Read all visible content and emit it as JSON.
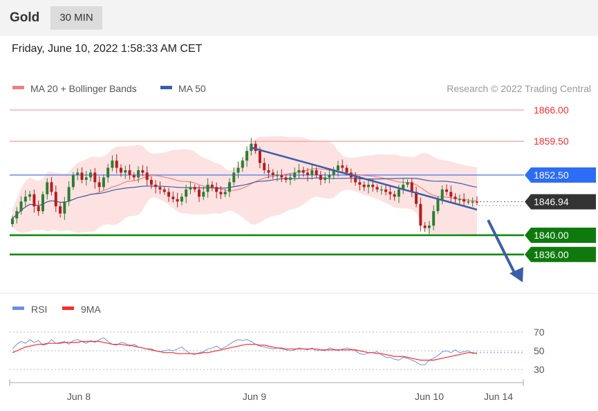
{
  "header": {
    "title": "Gold",
    "timeframe": "30 MIN"
  },
  "timestamp": "Friday, June 10, 2022 1:58:33 AM CET",
  "chart_data": [
    {
      "type": "candlestick",
      "title": "",
      "legend": [
        {
          "name": "MA 20 + Bollinger Bands",
          "color": "#f08080"
        },
        {
          "name": "MA 50",
          "color": "#3b5ea8"
        }
      ],
      "legend_position": "top-left",
      "credit": "Research © 2022 Trading Central",
      "x_tick_labels": [
        "Jun 8",
        "Jun 9",
        "Jun 10",
        "Jun 14"
      ],
      "ylim": [
        1832,
        1868
      ],
      "colors": {
        "up": "#2e7d32",
        "down": "#b71c1c",
        "bollinger_fill": "#fde2e2",
        "ma20": "#f08080",
        "ma50": "#3b5ea8"
      },
      "closes": [
        1843.5,
        1845.0,
        1847.0,
        1848.0,
        1848.5,
        1846.0,
        1845.0,
        1848.5,
        1851.0,
        1849.0,
        1846.0,
        1844.5,
        1847.0,
        1850.0,
        1852.5,
        1853.0,
        1851.5,
        1852.0,
        1853.0,
        1851.0,
        1850.0,
        1852.0,
        1854.0,
        1855.5,
        1854.0,
        1853.0,
        1853.5,
        1852.5,
        1852.0,
        1853.5,
        1853.0,
        1851.5,
        1850.5,
        1850.0,
        1849.5,
        1849.0,
        1848.0,
        1847.5,
        1847.0,
        1848.0,
        1849.5,
        1850.0,
        1849.5,
        1848.0,
        1849.0,
        1850.5,
        1850.0,
        1849.0,
        1848.5,
        1849.0,
        1851.0,
        1853.0,
        1854.0,
        1855.5,
        1857.5,
        1859.0,
        1857.5,
        1855.0,
        1853.5,
        1853.0,
        1852.5,
        1852.5,
        1852.0,
        1851.5,
        1852.0,
        1853.0,
        1853.5,
        1853.0,
        1852.5,
        1853.5,
        1852.5,
        1851.5,
        1852.0,
        1852.5,
        1853.5,
        1854.5,
        1854.0,
        1853.0,
        1852.0,
        1851.0,
        1850.5,
        1850.0,
        1850.5,
        1850.0,
        1849.5,
        1849.5,
        1849.0,
        1848.5,
        1848.0,
        1849.5,
        1850.5,
        1851.0,
        1849.0,
        1846.5,
        1842.0,
        1841.5,
        1842.0,
        1845.0,
        1847.5,
        1849.5,
        1849.0,
        1848.0,
        1847.5,
        1847.5,
        1847.0,
        1847.0,
        1847.0,
        1846.94
      ],
      "horizontal_levels": [
        {
          "value": 1866.0,
          "label": "1866.00",
          "style": "resistance",
          "color": "#ff2a2a"
        },
        {
          "value": 1859.5,
          "label": "1859.50",
          "style": "resistance",
          "color": "#ff2a2a"
        },
        {
          "value": 1852.5,
          "label": "1852.50",
          "style": "pivot",
          "color": "#3366ff"
        },
        {
          "value": 1846.94,
          "label": "1846.94",
          "style": "last-price",
          "color": "#333333"
        },
        {
          "value": 1840.0,
          "label": "1840.00",
          "style": "support",
          "color": "#1a8a1a"
        },
        {
          "value": 1836.0,
          "label": "1836.00",
          "style": "support",
          "color": "#1a8a1a"
        }
      ],
      "trendline": {
        "from_candle": 55,
        "from_value": 1859.5,
        "to_candle": 107,
        "to_value": 1849.0,
        "color": "#3b5ea8"
      },
      "forecast_arrow": {
        "from_candle": 107,
        "from_value": 1846.94,
        "to_value": 1836.0,
        "color": "#3b5ea8"
      }
    },
    {
      "type": "line",
      "legend": [
        {
          "name": "RSI",
          "color": "#6f8fe0"
        },
        {
          "name": "9MA",
          "color": "#ff2a2a"
        }
      ],
      "ylim": [
        20,
        80
      ],
      "y_ticks": [
        70,
        50,
        30
      ],
      "reference_lines": [
        70,
        50,
        30
      ],
      "rsi_values": [
        52,
        57,
        60,
        58,
        62,
        59,
        61,
        56,
        57,
        62,
        58,
        59,
        60,
        57,
        61,
        62,
        60,
        58,
        61,
        59,
        62,
        64,
        60,
        57,
        56,
        59,
        58,
        55,
        57,
        54,
        53,
        52,
        52,
        50,
        49,
        50,
        51,
        50,
        52,
        54,
        50,
        47,
        46,
        48,
        49,
        52,
        53,
        55,
        52,
        54,
        57,
        60,
        62,
        61,
        62,
        60,
        57,
        55,
        54,
        53,
        52,
        53,
        52,
        51,
        50,
        51,
        53,
        52,
        51,
        53,
        50,
        51,
        50,
        53,
        52,
        50,
        52,
        53,
        52,
        50,
        47,
        46,
        48,
        48,
        49,
        46,
        43,
        43,
        41,
        40,
        43,
        42,
        40,
        38,
        35,
        35,
        40,
        42,
        45,
        49,
        50,
        48,
        51,
        48,
        49,
        50,
        47,
        48
      ],
      "rsi_ma_values": [
        48,
        50,
        52,
        54,
        55,
        56,
        57,
        57,
        58,
        58,
        58,
        58,
        59,
        59,
        59,
        59,
        60,
        60,
        60,
        60,
        60,
        59,
        58,
        57,
        57,
        57,
        56,
        56,
        55,
        54,
        53,
        52,
        51,
        50,
        49,
        48,
        48,
        48,
        47,
        47,
        47,
        47,
        47,
        47,
        48,
        48,
        49,
        50,
        51,
        52,
        53,
        54,
        55,
        56,
        57,
        57,
        57,
        56,
        56,
        55,
        54,
        53,
        53,
        52,
        52,
        52,
        52,
        52,
        52,
        52,
        52,
        51,
        51,
        51,
        51,
        51,
        51,
        51,
        51,
        51,
        50,
        49,
        48,
        48,
        47,
        47,
        46,
        45,
        44,
        44,
        44,
        43,
        42,
        41,
        40,
        40,
        40,
        40,
        41,
        42,
        43,
        44,
        45,
        46,
        47,
        48,
        48,
        47
      ]
    }
  ]
}
